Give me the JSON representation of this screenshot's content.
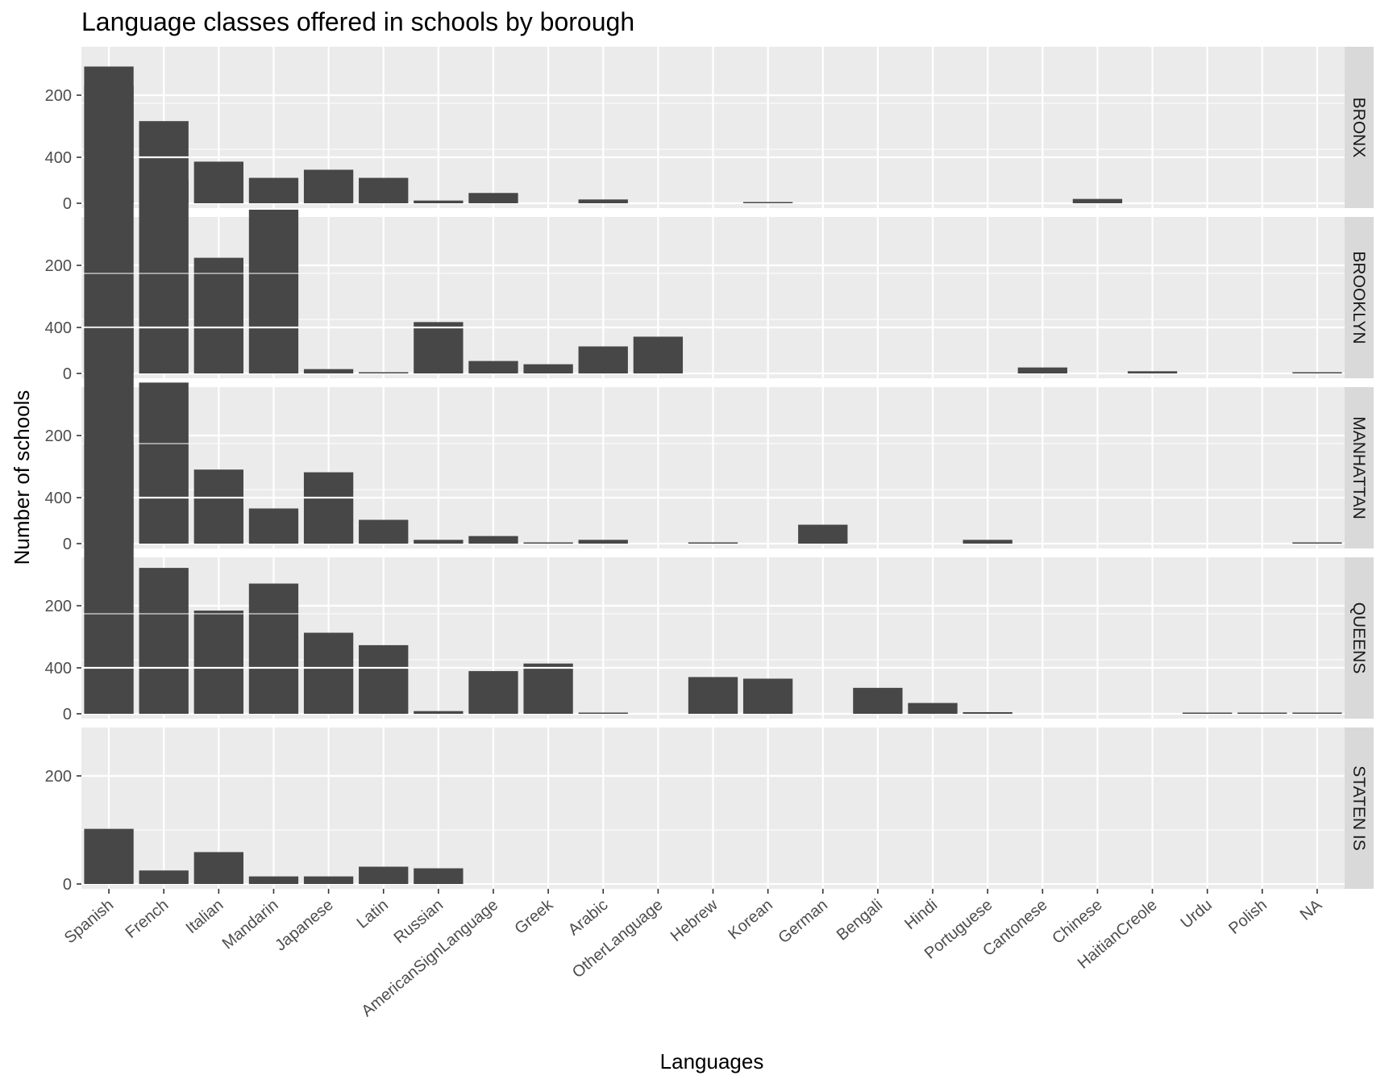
{
  "chart_data": {
    "type": "bar",
    "title": "Language classes offered in schools by borough",
    "xlabel": "Languages",
    "ylabel": "Number of schools",
    "ylim": [
      0,
      575
    ],
    "yticks": [
      0,
      200,
      400
    ],
    "grid": true,
    "facets": "rows",
    "categories": [
      "Spanish",
      "French",
      "Italian",
      "Mandarin",
      "Japanese",
      "Latin",
      "Russian",
      "AmericanSignLanguage",
      "Greek",
      "Arabic",
      "OtherLanguage",
      "Hebrew",
      "Korean",
      "German",
      "Bengali",
      "Hindi",
      "Portuguese",
      "Cantonese",
      "Chinese",
      "HaitianCreole",
      "Urdu",
      "Polish",
      "NA"
    ],
    "series": [
      {
        "name": "BRONX",
        "values": [
          253,
          152,
          77,
          47,
          62,
          47,
          5,
          19,
          0,
          7,
          0,
          0,
          2,
          0,
          0,
          0,
          0,
          0,
          8,
          0,
          0,
          0,
          0
        ]
      },
      {
        "name": "BROOKLYN",
        "values": [
          533,
          357,
          214,
          303,
          8,
          2,
          95,
          23,
          17,
          50,
          68,
          0,
          0,
          0,
          0,
          0,
          0,
          11,
          0,
          4,
          0,
          0,
          2
        ]
      },
      {
        "name": "MANHATTAN",
        "values": [
          399,
          298,
          137,
          65,
          132,
          44,
          7,
          14,
          2,
          7,
          0,
          1,
          0,
          35,
          0,
          0,
          7,
          0,
          0,
          0,
          0,
          0,
          2
        ]
      },
      {
        "name": "QUEENS",
        "values": [
          502,
          270,
          191,
          241,
          150,
          127,
          5,
          79,
          93,
          2,
          0,
          68,
          65,
          0,
          48,
          20,
          3,
          0,
          0,
          0,
          2,
          2,
          2
        ]
      },
      {
        "name": "STATEN IS",
        "values": [
          102,
          25,
          59,
          14,
          14,
          32,
          29,
          0,
          0,
          0,
          0,
          0,
          0,
          0,
          0,
          0,
          0,
          0,
          0,
          0,
          0,
          0,
          0
        ]
      }
    ]
  }
}
